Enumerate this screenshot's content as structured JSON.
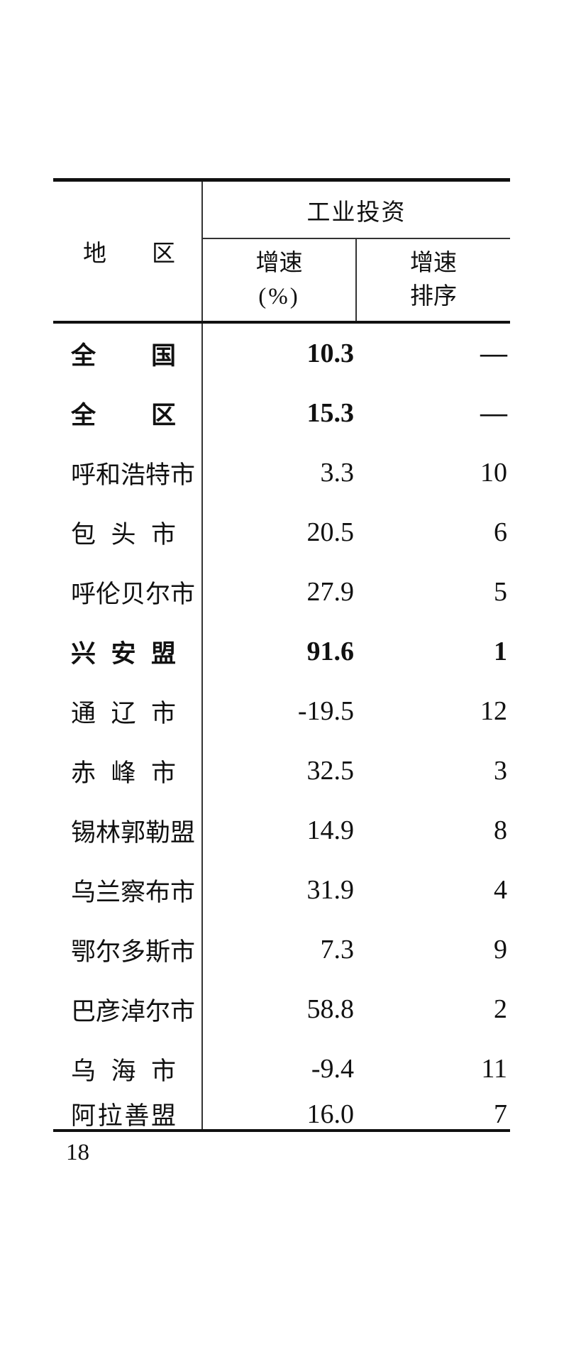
{
  "page": {
    "number": "18"
  },
  "table": {
    "header": {
      "region_label": "地区",
      "group_label": "工业投资",
      "growth_col": {
        "line1": "增速",
        "line2": "(%)"
      },
      "rank_col": {
        "line1": "增速",
        "line2": "排序"
      }
    },
    "rows": [
      {
        "region": "全国",
        "growth": "10.3",
        "rank": "—",
        "bold": true
      },
      {
        "region": "全区",
        "growth": "15.3",
        "rank": "—",
        "bold": true
      },
      {
        "region": "呼和浩特市",
        "growth": "3.3",
        "rank": "10",
        "bold": false
      },
      {
        "region": "包头市",
        "growth": "20.5",
        "rank": "6",
        "bold": false
      },
      {
        "region": "呼伦贝尔市",
        "growth": "27.9",
        "rank": "5",
        "bold": false
      },
      {
        "region": "兴安盟",
        "growth": "91.6",
        "rank": "1",
        "bold": true
      },
      {
        "region": "通辽市",
        "growth": "-19.5",
        "rank": "12",
        "bold": false
      },
      {
        "region": "赤峰市",
        "growth": "32.5",
        "rank": "3",
        "bold": false
      },
      {
        "region": "锡林郭勒盟",
        "growth": "14.9",
        "rank": "8",
        "bold": false
      },
      {
        "region": "乌兰察布市",
        "growth": "31.9",
        "rank": "4",
        "bold": false
      },
      {
        "region": "鄂尔多斯市",
        "growth": "7.3",
        "rank": "9",
        "bold": false
      },
      {
        "region": "巴彦淖尔市",
        "growth": "58.8",
        "rank": "2",
        "bold": false
      },
      {
        "region": "乌海市",
        "growth": "-9.4",
        "rank": "11",
        "bold": false
      },
      {
        "region": "阿拉善盟",
        "growth": "16.0",
        "rank": "7",
        "bold": false
      }
    ]
  }
}
